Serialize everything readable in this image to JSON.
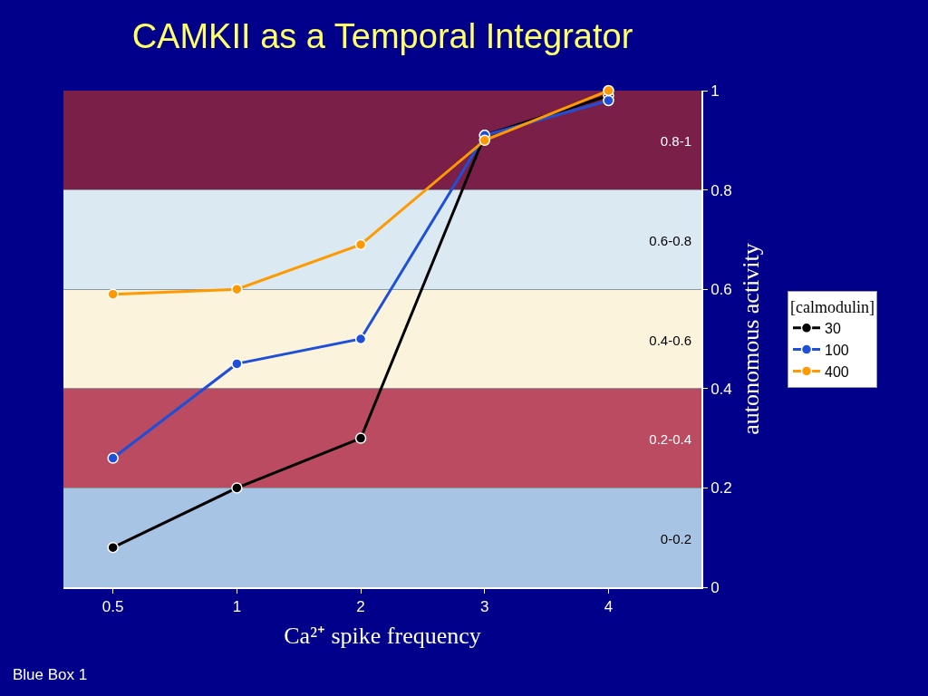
{
  "chart_data": {
    "type": "line",
    "title": "CAMKII as a Temporal Integrator",
    "xlabel": "Ca²⁺ spike frequency",
    "ylabel": "autonomous activity",
    "legend_title": "[calmodulin]",
    "categories": [
      "0.5",
      "1",
      "2",
      "3",
      "4"
    ],
    "series": [
      {
        "name": "30",
        "color": "#000000",
        "values": [
          0.08,
          0.2,
          0.3,
          0.91,
          0.99
        ]
      },
      {
        "name": "100",
        "color": "#1e4fd8",
        "values": [
          0.26,
          0.45,
          0.5,
          0.91,
          0.98
        ]
      },
      {
        "name": "400",
        "color": "#ff9900",
        "values": [
          0.59,
          0.6,
          0.69,
          0.9,
          1
        ]
      }
    ],
    "ylim": [
      0,
      1
    ],
    "yticks": [
      0,
      0.2,
      0.4,
      0.6,
      0.8,
      1
    ],
    "grid": "y",
    "legend": "right",
    "marker": "circle",
    "line_style": "solid",
    "bands": [
      {
        "axis": "y",
        "from": 0.8,
        "to": 1,
        "label": "0.8-1",
        "color": "#7a1f48"
      },
      {
        "axis": "y",
        "from": 0.6,
        "to": 0.8,
        "label": "0.6-0.8",
        "color": "#dbe9f2"
      },
      {
        "axis": "y",
        "from": 0.4,
        "to": 0.6,
        "label": "0.4-0.6",
        "color": "#fbf3dc"
      },
      {
        "axis": "y",
        "from": 0.2,
        "to": 0.4,
        "label": "0.2-0.4",
        "color": "#bb4b60"
      },
      {
        "axis": "y",
        "from": 0,
        "to": 0.2,
        "label": "0-0.2",
        "color": "#a8c4e4"
      }
    ],
    "annotations": [
      "Blue Box 1"
    ]
  }
}
